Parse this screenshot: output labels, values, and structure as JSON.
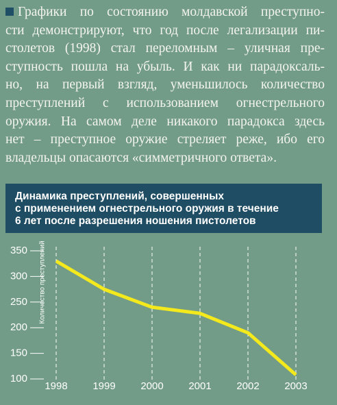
{
  "text": {
    "lines": [
      "Графики по состоянию молдавской преступно-",
      "сти демонстрируют, что год после легализации пи-",
      "столетов (1998) стал переломным – уличная пре-",
      "ступность пошла на убыль. И как ни парадоксаль-",
      "но, на первый взгляд, уменьшилось количество",
      "преступлений с использованием огнестрельного",
      "оружия. На самом деле никакого парадокса здесь",
      "нет – преступное оружие стреляет реже, ибо его",
      "владельцы опасаются «симметричного ответа»."
    ]
  },
  "chart_data": {
    "type": "line",
    "title_lines": [
      "Динамика преступлений, совершенных",
      "с применением огнестрельного оружия в течение",
      "6 лет после разрешения ношения пистолетов"
    ],
    "y_label": "Количество преступлений",
    "categories": [
      "1998",
      "1999",
      "2000",
      "2001",
      "2002",
      "2003"
    ],
    "series": [
      {
        "color": "#f3e91c",
        "values": [
          330,
          275,
          240,
          228,
          190,
          108
        ]
      }
    ],
    "ylim": [
      100,
      350
    ],
    "yticks": [
      100,
      150,
      200,
      250,
      300,
      350
    ],
    "grid": true
  }
}
